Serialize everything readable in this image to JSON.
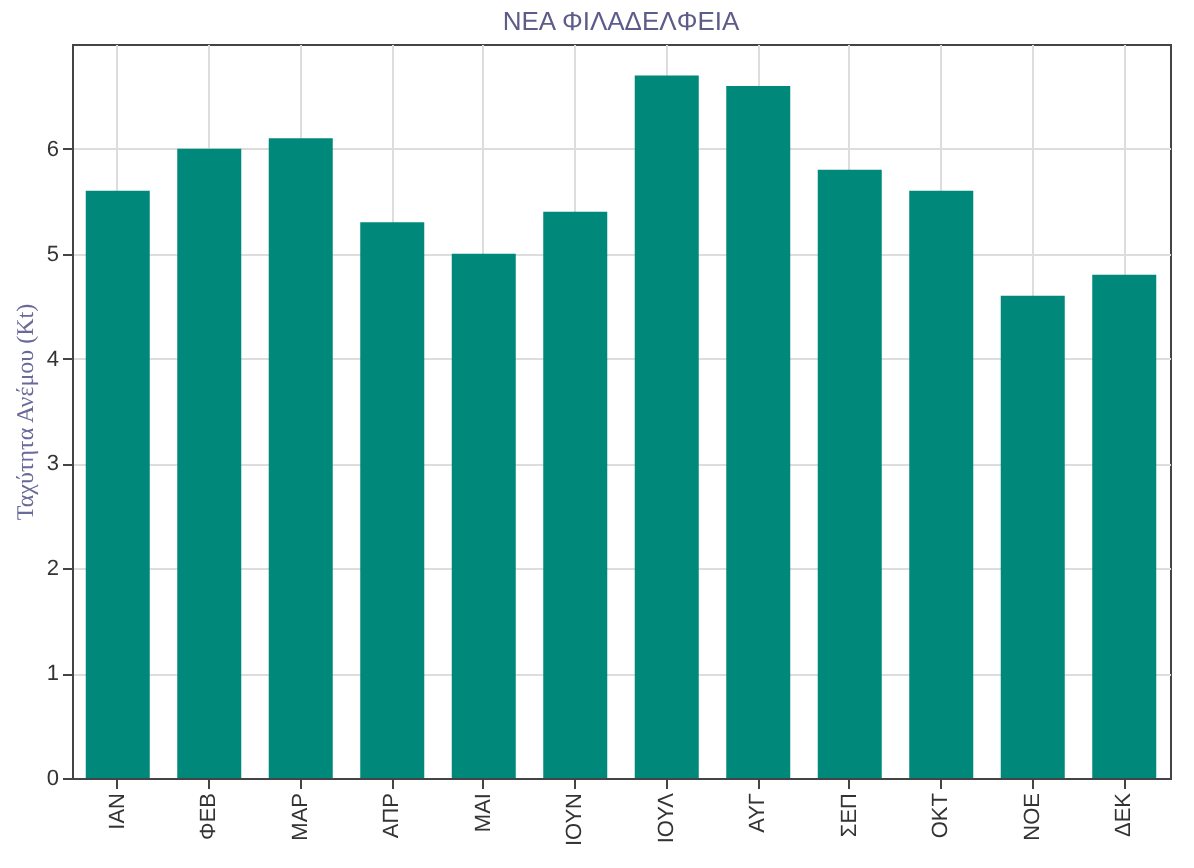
{
  "chart_data": {
    "type": "bar",
    "title": "ΝΕΑ ΦΙΛΑΔΕΛΦΕΙΑ",
    "ylabel": "Ταχύτητα Ανέμου (Kt)",
    "categories": [
      "ΙΑΝ",
      "ΦΕΒ",
      "ΜΑΡ",
      "ΑΠΡ",
      "ΜΑΙ",
      "ΙΟΥΝ",
      "ΙΟΥΛ",
      "ΑΥΓ",
      "ΣΕΠ",
      "ΟΚΤ",
      "ΝΟΕ",
      "ΔΕΚ"
    ],
    "values": [
      5.6,
      6.0,
      6.1,
      5.3,
      5.0,
      5.4,
      6.7,
      6.6,
      5.8,
      5.6,
      4.6,
      4.8
    ],
    "color": "#00897b",
    "ylim": [
      0,
      7
    ],
    "yticks": [
      0,
      1,
      2,
      3,
      4,
      5,
      6
    ],
    "grid": true
  }
}
